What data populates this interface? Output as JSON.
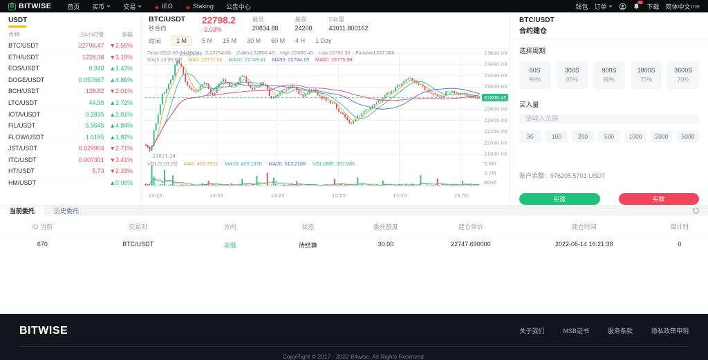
{
  "nav": {
    "brand": "BITWISE",
    "home": "首页",
    "buy": "买币",
    "trade": "交易",
    "ieo": "IEO",
    "staking": "Staking",
    "announce": "公告中心",
    "wallet": "钱包",
    "orders": "订单",
    "download": "下载",
    "lang": "简体中文",
    "lang_extra": "me"
  },
  "sidebar": {
    "tab": "USDT",
    "col_coin": "币种",
    "col_vol": "24小时量",
    "col_change": "涨幅",
    "rows": [
      {
        "pair": "BTC/USDT",
        "price": "22796.47",
        "change": "▼2.55%",
        "dir": "down"
      },
      {
        "pair": "ETH/USDT",
        "price": "1228.38",
        "change": "▼3.15%",
        "dir": "down"
      },
      {
        "pair": "EOS/USDT",
        "price": "0.948",
        "change": "▲1.43%",
        "dir": "up"
      },
      {
        "pair": "DOGE/USDT",
        "price": "0.057667",
        "change": "▲4.86%",
        "dir": "up"
      },
      {
        "pair": "BCH/USDT",
        "price": "128.82",
        "change": "▼2.01%",
        "dir": "down"
      },
      {
        "pair": "LTC/USDT",
        "price": "44.99",
        "change": "▲3.72%",
        "dir": "up"
      },
      {
        "pair": "IOTA/USDT",
        "price": "0.2835",
        "change": "▲2.81%",
        "dir": "up"
      },
      {
        "pair": "FIL/USDT",
        "price": "5.5645",
        "change": "▲4.84%",
        "dir": "up"
      },
      {
        "pair": "FLOW/USDT",
        "price": "1.0195",
        "change": "▲1.82%",
        "dir": "up"
      },
      {
        "pair": "JST/USDT",
        "price": "0.029904",
        "change": "▼2.71%",
        "dir": "down"
      },
      {
        "pair": "ITC/USDT",
        "price": "0.007301",
        "change": "▼3.41%",
        "dir": "down"
      },
      {
        "pair": "HT/USDT",
        "price": "5.73",
        "change": "▼2.33%",
        "dir": "down"
      },
      {
        "pair": "HM/USDT",
        "price": "",
        "change": "▲0.00%",
        "dir": "up"
      }
    ]
  },
  "chart": {
    "pair": "BTC/USDT",
    "type_label": "秒合约",
    "price": "22798.2",
    "change": "-2.03%",
    "low_label": "最低",
    "low": "20834.88",
    "high_label": "最高",
    "high": "24200",
    "vol24_label": "24h量",
    "vol24": "43011.800162",
    "tf_label": "时间",
    "timeframes": [
      "1 M",
      "5 M",
      "15 M",
      "30 M",
      "60 M",
      "4 H",
      "1 Day"
    ],
    "ohlc_line": "Time:2022-06-14 16:24    S:22754.86    Collect:22806.45    High:22806.45    Low:22792.33    Finished:357.086",
    "ma_label": "MA(5,10,30,60)",
    "ma5": "MA5: 22771.00",
    "ma10": "MA10: 22749.41",
    "ma30": "MA30: 22784.19",
    "ma60": "MA60: 22775.98",
    "vol_legend": "VOL(5,10,20)",
    "vma5": "MA5: 405.291K",
    "vma10": "MA10: 420.197K",
    "vma20": "MA20: 513.218K",
    "volume": "VOLUME: 357.086"
  },
  "chart_data": {
    "type": "candlestick",
    "seed": 11,
    "count": 160,
    "ylim": [
      21800,
      23600
    ],
    "vol_max": 6400000,
    "current_price": {
      "label": "22806.45",
      "value": 22806.45
    },
    "annotations": {
      "high": {
        "label": "23518.05",
        "value": 23518.05
      },
      "low": {
        "label": "21821.24",
        "value": 21821.24
      }
    },
    "price_ticks": [
      {
        "label": "23600.00",
        "value": 23600
      },
      {
        "label": "23400.00",
        "value": 23400
      },
      {
        "label": "23200.00",
        "value": 23200
      },
      {
        "label": "23000.00",
        "value": 23000
      },
      {
        "label": "22800.00",
        "value": 22800
      },
      {
        "label": "22600.00",
        "value": 22600
      },
      {
        "label": "22400.00",
        "value": 22400
      },
      {
        "label": "22200.00",
        "value": 22200
      },
      {
        "label": "22000.00",
        "value": 22000
      },
      {
        "label": "21800.00",
        "value": 21800
      }
    ],
    "vol_ticks": [
      {
        "label": "5.6M",
        "value": 5600000
      },
      {
        "label": "3.2M",
        "value": 3200000
      },
      {
        "label": "800K",
        "value": 800000
      }
    ],
    "x_ticks": [
      "13:25",
      "13:55",
      "14:25",
      "14:55",
      "15:25",
      "15:55"
    ],
    "x_tick_pos": [
      0.03,
      0.212,
      0.394,
      0.576,
      0.758,
      0.94
    ],
    "anchors": [
      [
        0.0,
        21960
      ],
      [
        0.015,
        21845
      ],
      [
        0.03,
        22350
      ],
      [
        0.055,
        22900
      ],
      [
        0.075,
        23120
      ],
      [
        0.095,
        23480
      ],
      [
        0.105,
        23350
      ],
      [
        0.125,
        23000
      ],
      [
        0.15,
        22900
      ],
      [
        0.175,
        23080
      ],
      [
        0.2,
        22870
      ],
      [
        0.23,
        23120
      ],
      [
        0.26,
        23000
      ],
      [
        0.29,
        23180
      ],
      [
        0.32,
        22950
      ],
      [
        0.35,
        23060
      ],
      [
        0.38,
        22800
      ],
      [
        0.41,
        22930
      ],
      [
        0.44,
        23010
      ],
      [
        0.47,
        22840
      ],
      [
        0.5,
        22950
      ],
      [
        0.53,
        22800
      ],
      [
        0.56,
        22700
      ],
      [
        0.59,
        22520
      ],
      [
        0.615,
        22330
      ],
      [
        0.64,
        22480
      ],
      [
        0.67,
        22620
      ],
      [
        0.7,
        22760
      ],
      [
        0.73,
        22890
      ],
      [
        0.76,
        23020
      ],
      [
        0.79,
        23150
      ],
      [
        0.82,
        23040
      ],
      [
        0.85,
        22890
      ],
      [
        0.88,
        22810
      ],
      [
        0.91,
        22930
      ],
      [
        0.94,
        22870
      ],
      [
        0.97,
        22830
      ],
      [
        1.0,
        22806
      ]
    ],
    "volume_spikes": [
      [
        3,
        5300000
      ],
      [
        4,
        2300000
      ],
      [
        9,
        4100000
      ],
      [
        13,
        2600000
      ],
      [
        30,
        1200000
      ],
      [
        46,
        1700000
      ],
      [
        53,
        2500000
      ],
      [
        58,
        3300000
      ],
      [
        61,
        2000000
      ],
      [
        72,
        1100000
      ],
      [
        90,
        1700000
      ],
      [
        101,
        2100000
      ],
      [
        113,
        1300000
      ],
      [
        131,
        2700000
      ],
      [
        139,
        1800000
      ],
      [
        151,
        1300000
      ]
    ],
    "colors": {
      "up": "#2dbd85",
      "down": "#f0485c",
      "ma5": "#d8a634",
      "ma10": "#38b3b3",
      "ma30": "#4f6bd8",
      "ma60": "#e8446e",
      "grid": "#f0f1f3",
      "tick": "#9aa2af"
    }
  },
  "panel": {
    "pair": "BTC/USDT",
    "title": "合约建仓",
    "period_label": "选择周期",
    "periods": [
      {
        "sec": "60S",
        "pct": "90%"
      },
      {
        "sec": "300S",
        "pct": "85%"
      },
      {
        "sec": "900S",
        "pct": "80%"
      },
      {
        "sec": "1800S",
        "pct": "75%"
      },
      {
        "sec": "3600S",
        "pct": "70%"
      }
    ],
    "amount_label": "买入量",
    "input_placeholder": "请输入金额",
    "amounts": [
      "30",
      "100",
      "200",
      "500",
      "1000",
      "2000",
      "5000"
    ],
    "balance_label": "账户余额：",
    "balance": "976205.5701 USDT",
    "buy_up": "买涨",
    "buy_down": "买跌"
  },
  "orders": {
    "tab_current": "当前委托",
    "tab_history": "历史委托",
    "headers": [
      "ID 当前",
      "交易对",
      "方向",
      "状态",
      "委托额度",
      "建仓单价",
      "建仓时间",
      "倒计时"
    ],
    "row": {
      "id": "670",
      "pair": "BTC/USDT",
      "dir": "买涨",
      "status": "待结算",
      "amount": "30.00",
      "price": "22747.690000",
      "time": "2022-06-14 16:21:38",
      "countdown": "0"
    }
  },
  "footer": {
    "brand": "BITWISE",
    "link_about": "关于我们",
    "link_msb": "MSB证书",
    "link_terms": "服务条款",
    "link_privacy": "隐私政策申明",
    "copyright": "CopyRight © 2017 - 2022 Bitwise. All Rights Reserved."
  }
}
